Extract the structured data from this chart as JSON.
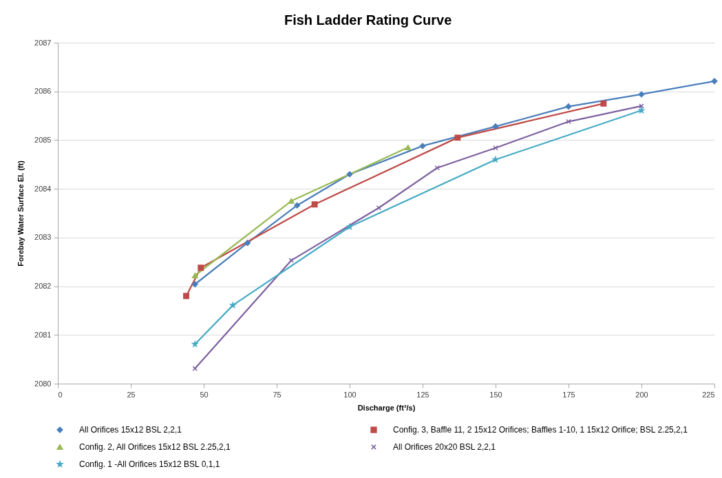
{
  "chart_data": {
    "type": "line",
    "title": "Fish Ladder Rating Curve",
    "xlabel": "Discharge (ft³/s)",
    "ylabel": "Forebay Water Surface El. (ft)",
    "xlim": [
      0,
      225
    ],
    "xticks": [
      0,
      25,
      50,
      75,
      100,
      125,
      150,
      175,
      200,
      225
    ],
    "ylim": [
      2080,
      2087
    ],
    "yticks": [
      2080,
      2081,
      2082,
      2083,
      2084,
      2085,
      2086,
      2087
    ],
    "grid": "y",
    "legend": "bottom",
    "series": [
      {
        "name": "All Orifices 15x12 BSL 2,2,1",
        "color": "#4a7ebb",
        "marker": "diamond",
        "x": [
          47,
          65,
          82,
          100,
          125,
          150,
          175,
          200,
          225
        ],
        "values": [
          2082.04,
          2082.89,
          2083.66,
          2084.3,
          2084.88,
          2085.28,
          2085.69,
          2085.94,
          2086.21
        ]
      },
      {
        "name": "Config. 3, Baffle 11, 2 15x12 Orifices; Baffles 1-10, 1 15x12 Orifice; BSL 2.25,2,1",
        "color": "#be4b48",
        "marker": "square",
        "x": [
          44,
          49,
          88,
          137,
          187
        ],
        "values": [
          2081.8,
          2082.38,
          2083.68,
          2085.05,
          2085.75
        ]
      },
      {
        "name": "Config. 2, All Orifices 15x12 BSL 2.25,2,1",
        "color": "#98b954",
        "marker": "triangle",
        "x": [
          47,
          80,
          120
        ],
        "values": [
          2082.22,
          2083.75,
          2084.85
        ]
      },
      {
        "name": "All Orifices 20x20 BSL 2,2,1",
        "color": "#7d60a0",
        "marker": "cross",
        "x": [
          47,
          80,
          110,
          130,
          150,
          175,
          200
        ],
        "values": [
          2080.31,
          2082.53,
          2083.61,
          2084.43,
          2084.84,
          2085.38,
          2085.7
        ]
      },
      {
        "name": "Config. 1 -All Orifices 15x12 BSL 0,1,1",
        "color": "#46aac5",
        "marker": "star",
        "x": [
          47,
          60,
          100,
          150,
          200
        ],
        "values": [
          2080.81,
          2081.61,
          2083.22,
          2084.6,
          2085.61
        ]
      }
    ]
  }
}
